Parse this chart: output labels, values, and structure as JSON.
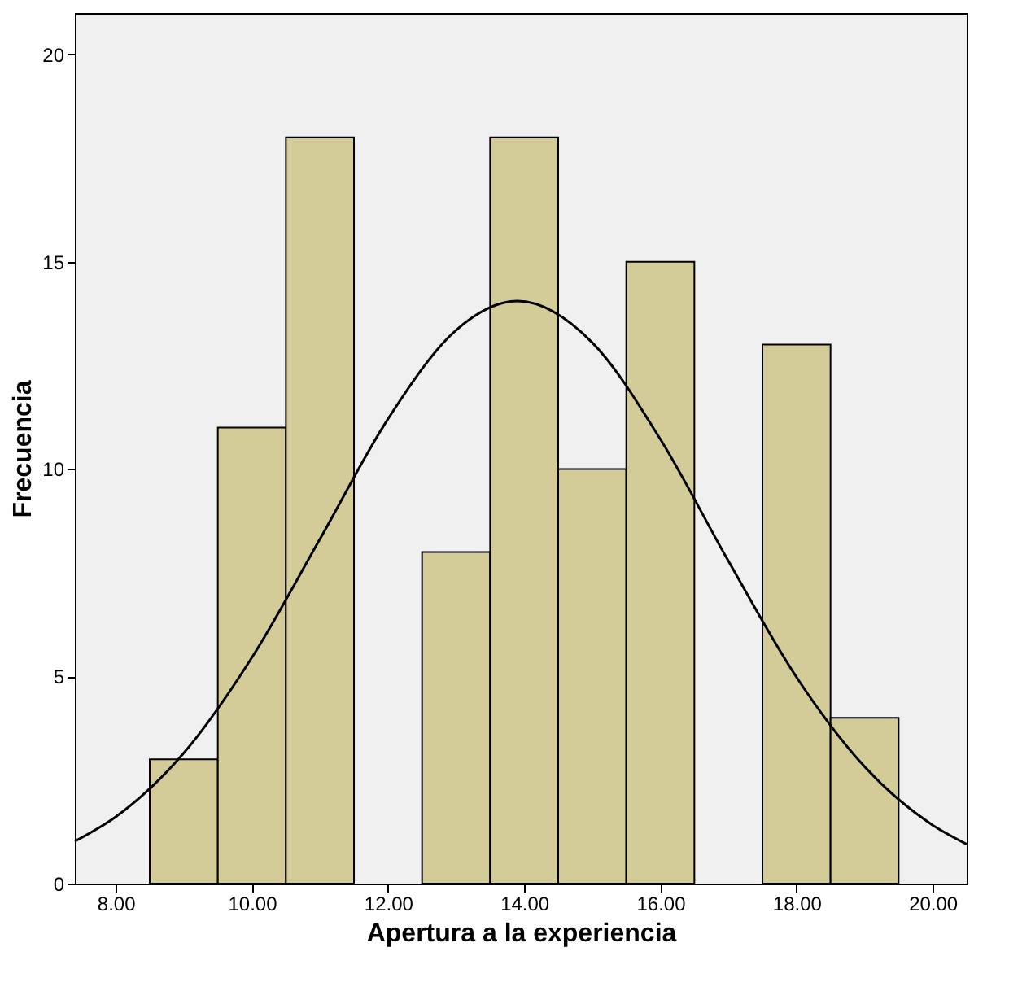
{
  "chart_data": {
    "type": "histogram",
    "xlabel": "Apertura a la experiencia",
    "ylabel": "Frecuencia",
    "bins": [
      8.5,
      9.5,
      10.5,
      11.5,
      12.5,
      13.5,
      14.5,
      15.5,
      16.5,
      17.5,
      18.5,
      19.5
    ],
    "values": [
      3,
      11,
      18,
      0,
      8,
      18,
      10,
      15,
      0,
      13,
      4
    ],
    "color": "#d3cc99",
    "series": [
      {
        "type": "line",
        "color": "#000000",
        "x": [
          7.4,
          8,
          9,
          10,
          11,
          12,
          13,
          13.9,
          15,
          16,
          17,
          18,
          19,
          20,
          20.5
        ],
        "values": [
          1.02,
          1.61,
          3.15,
          5.45,
          8.31,
          11.21,
          13.35,
          14.05,
          13.05,
          10.72,
          7.78,
          4.98,
          2.82,
          1.41,
          0.95
        ]
      }
    ],
    "xlim": [
      7.4,
      20.5
    ],
    "ylim": [
      0,
      21
    ],
    "xticks": [
      {
        "value": 8,
        "label": "8.00"
      },
      {
        "value": 10,
        "label": "10.00"
      },
      {
        "value": 12,
        "label": "12.00"
      },
      {
        "value": 14,
        "label": "14.00"
      },
      {
        "value": 16,
        "label": "16.00"
      },
      {
        "value": 18,
        "label": "18.00"
      },
      {
        "value": 20,
        "label": "20.00"
      }
    ],
    "yticks": [
      0,
      5,
      10,
      15,
      20
    ],
    "grid": false
  }
}
